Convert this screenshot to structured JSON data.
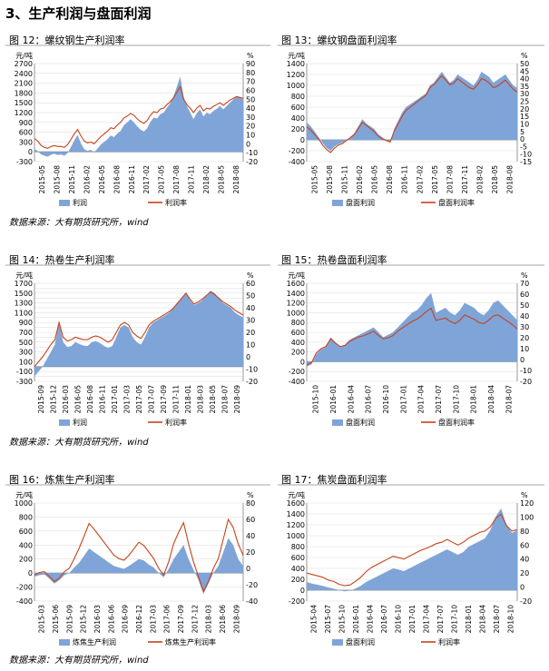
{
  "section_title": "3、生产利润与盘面利润",
  "source_text": "数据来源：大有期货研究所，wind",
  "colors": {
    "bar": "#7fa4d8",
    "line": "#c8421a",
    "axis": "#808080",
    "grid": "#d9d9d9",
    "title_rule": "#a6a6a6"
  },
  "chart_data": [
    {
      "type": "bar",
      "title": "图 12：螺纹钢生产利润率",
      "ylabel_left": "元/吨",
      "ylabel_right": "%",
      "y_left": {
        "min": -300,
        "max": 2700,
        "ticks": [
          -300,
          0,
          300,
          600,
          900,
          1200,
          1500,
          1800,
          2100,
          2400,
          2700
        ]
      },
      "y_right": {
        "min": -20,
        "max": 90,
        "ticks": [
          -20,
          -10,
          0,
          10,
          20,
          30,
          40,
          50,
          60,
          70,
          80,
          90
        ]
      },
      "x_ticks": [
        "2015-05",
        "2015-08",
        "2015-11",
        "2016-02",
        "2016-05",
        "2016-08",
        "2016-11",
        "2017-02",
        "2017-05",
        "2017-08",
        "2017-11",
        "2018-02",
        "2018-05",
        "2018-08"
      ],
      "series": [
        {
          "name": "利润",
          "type": "area",
          "values": [
            90,
            20,
            -80,
            -120,
            -150,
            -90,
            -60,
            -100,
            -80,
            -120,
            -40,
            150,
            350,
            520,
            260,
            80,
            30,
            60,
            -20,
            100,
            220,
            300,
            380,
            500,
            450,
            560,
            640,
            820,
            900,
            1000,
            900,
            780,
            680,
            620,
            720,
            920,
            1050,
            1020,
            1150,
            1200,
            1350,
            1480,
            1700,
            2000,
            2300,
            1700,
            1400,
            1200,
            1000,
            1180,
            1300,
            1080,
            1200,
            1150,
            1250,
            1320,
            1400,
            1300,
            1400,
            1500,
            1600,
            1700,
            1650,
            1600
          ]
        },
        {
          "name": "利润率",
          "type": "line",
          "axis": "right",
          "values": [
            6,
            3,
            -2,
            -4,
            -5,
            -3,
            -2,
            -3,
            -3,
            -4,
            -1,
            5,
            11,
            16,
            9,
            3,
            1,
            2,
            0,
            4,
            8,
            11,
            14,
            18,
            17,
            21,
            24,
            29,
            31,
            34,
            32,
            28,
            25,
            23,
            26,
            32,
            36,
            35,
            39,
            40,
            44,
            47,
            52,
            58,
            64,
            50,
            44,
            40,
            35,
            40,
            43,
            37,
            40,
            39,
            42,
            44,
            46,
            43,
            46,
            49,
            51,
            53,
            52,
            51
          ]
        }
      ],
      "legend": [
        "利润",
        "利润率"
      ]
    },
    {
      "type": "bar",
      "title": "图 13：螺纹钢盘面利润率",
      "ylabel_left": "元/吨",
      "ylabel_right": "%",
      "y_left": {
        "min": -400,
        "max": 1400,
        "ticks": [
          -400,
          -200,
          0,
          200,
          400,
          600,
          800,
          1000,
          1200,
          1400
        ]
      },
      "y_right": {
        "min": -15,
        "max": 50,
        "ticks": [
          -15,
          -10,
          -5,
          0,
          5,
          10,
          15,
          20,
          25,
          30,
          35,
          40,
          45,
          50
        ]
      },
      "x_ticks": [
        "2015-05",
        "2015-08",
        "2015-11",
        "2016-02",
        "2016-05",
        "2016-08",
        "2016-11",
        "2017-02",
        "2017-05",
        "2017-08",
        "2017-11",
        "2018-02",
        "2018-05",
        "2018-08"
      ],
      "series": [
        {
          "name": "盘面利润",
          "type": "area",
          "values": [
            320,
            250,
            150,
            50,
            -60,
            -150,
            -200,
            -120,
            -80,
            -50,
            0,
            50,
            120,
            250,
            380,
            300,
            250,
            200,
            100,
            50,
            0,
            -50,
            200,
            350,
            500,
            600,
            650,
            700,
            750,
            800,
            850,
            1000,
            1050,
            1150,
            1250,
            1150,
            1050,
            1100,
            1200,
            1150,
            1100,
            1050,
            1000,
            1100,
            1250,
            1200,
            1150,
            1050,
            1100,
            1150,
            1200,
            1100,
            1000,
            950
          ]
        },
        {
          "name": "盘面利润率",
          "type": "line",
          "axis": "right",
          "values": [
            8,
            6,
            3,
            0,
            -4,
            -7,
            -9,
            -6,
            -4,
            -3,
            -1,
            1,
            3,
            7,
            11,
            9,
            7,
            5,
            2,
            0,
            -1,
            -2,
            5,
            10,
            15,
            19,
            21,
            23,
            25,
            27,
            29,
            34,
            36,
            39,
            42,
            39,
            36,
            37,
            40,
            38,
            36,
            34,
            33,
            36,
            40,
            39,
            37,
            34,
            35,
            37,
            39,
            36,
            33,
            31
          ]
        }
      ],
      "legend": [
        "盘面利润",
        "盘面利润率"
      ]
    },
    {
      "type": "bar",
      "title": "图 14：热卷生产利润率",
      "ylabel_left": "元/吨",
      "ylabel_right": "%",
      "y_left": {
        "min": -300,
        "max": 1700,
        "ticks": [
          -300,
          -200,
          -100,
          0,
          100,
          200,
          300,
          400,
          500,
          600,
          700,
          800,
          900,
          1000,
          1100,
          1200,
          1300,
          1400,
          1500,
          1600,
          1700
        ]
      },
      "y_left_labels": [
        -300,
        -100,
        100,
        300,
        500,
        700,
        900,
        1100,
        1300,
        1500,
        1700
      ],
      "y_right": {
        "min": -20,
        "max": 60,
        "ticks": [
          -20,
          -10,
          0,
          10,
          20,
          30,
          40,
          50,
          60
        ]
      },
      "x_ticks": [
        "2015-09",
        "2015-12",
        "2016-03",
        "2016-05",
        "2016-08",
        "2016-11",
        "2017-01",
        "2017-03",
        "2017-05",
        "2017-07",
        "2017-09",
        "2017-11",
        "2018-01",
        "2018-03",
        "2018-05",
        "2018-07",
        "2018-09"
      ],
      "series": [
        {
          "name": "利润",
          "type": "area",
          "values": [
            -200,
            -100,
            0,
            150,
            300,
            450,
            900,
            500,
            400,
            420,
            500,
            460,
            430,
            420,
            500,
            520,
            480,
            420,
            380,
            420,
            600,
            800,
            850,
            800,
            600,
            500,
            450,
            600,
            800,
            900,
            950,
            1000,
            1050,
            1100,
            1200,
            1300,
            1400,
            1500,
            1350,
            1250,
            1300,
            1350,
            1450,
            1550,
            1500,
            1400,
            1300,
            1250,
            1200,
            1100,
            1050,
            1000
          ]
        },
        {
          "name": "利润率",
          "type": "line",
          "axis": "right",
          "values": [
            -8,
            -4,
            0,
            5,
            10,
            14,
            28,
            16,
            13,
            14,
            16,
            15,
            14,
            14,
            16,
            17,
            16,
            14,
            12,
            14,
            20,
            26,
            28,
            26,
            20,
            17,
            15,
            20,
            26,
            29,
            31,
            33,
            35,
            37,
            40,
            44,
            48,
            52,
            47,
            43,
            45,
            47,
            50,
            53,
            51,
            48,
            45,
            43,
            41,
            38,
            36,
            34
          ]
        }
      ],
      "legend": [
        "利润",
        "利润率"
      ]
    },
    {
      "type": "bar",
      "title": "图 15：热卷盘面利润率",
      "ylabel_left": "元/吨",
      "ylabel_right": "%",
      "y_left": {
        "min": -400,
        "max": 1600,
        "ticks": [
          -400,
          -200,
          0,
          200,
          400,
          600,
          800,
          1000,
          1200,
          1400,
          1600
        ]
      },
      "y_right": {
        "min": -20,
        "max": 70,
        "ticks": [
          -20,
          -10,
          0,
          10,
          20,
          30,
          40,
          50,
          60,
          70
        ]
      },
      "x_ticks": [
        "2015-10",
        "2016-01",
        "2016-04",
        "2016-07",
        "2016-10",
        "2017-01",
        "2017-04",
        "2017-07",
        "2017-10",
        "2018-01",
        "2018-04",
        "2018-07"
      ],
      "series": [
        {
          "name": "盘面利润",
          "type": "area",
          "values": [
            -100,
            -50,
            150,
            250,
            300,
            500,
            400,
            300,
            350,
            450,
            500,
            550,
            600,
            650,
            700,
            600,
            500,
            550,
            600,
            700,
            800,
            900,
            1000,
            1050,
            1150,
            1300,
            1400,
            1000,
            1050,
            1100,
            1000,
            950,
            1050,
            1200,
            1150,
            1100,
            1000,
            950,
            1050,
            1200,
            1250,
            1150,
            1050,
            950,
            850
          ]
        },
        {
          "name": "盘面利润率",
          "type": "line",
          "axis": "right",
          "values": [
            -5,
            -3,
            6,
            10,
            12,
            19,
            15,
            12,
            13,
            17,
            19,
            21,
            22,
            24,
            26,
            22,
            19,
            20,
            22,
            26,
            29,
            32,
            35,
            37,
            40,
            44,
            47,
            36,
            37,
            38,
            35,
            33,
            36,
            41,
            39,
            37,
            34,
            33,
            36,
            40,
            41,
            38,
            35,
            32,
            28
          ]
        }
      ],
      "legend": [
        "盘面利润",
        "盘面利润率"
      ]
    },
    {
      "type": "bar",
      "title": "图 16：炼焦生产利润率",
      "ylabel_left": "元/吨",
      "ylabel_right": "%",
      "y_left": {
        "min": -400,
        "max": 1000,
        "ticks": [
          -400,
          -200,
          0,
          200,
          400,
          600,
          800,
          1000
        ]
      },
      "y_right": {
        "min": -40,
        "max": 80,
        "ticks": [
          -40,
          -20,
          0,
          20,
          40,
          60,
          80
        ]
      },
      "x_ticks": [
        "2015-03",
        "2015-06",
        "2015-09",
        "2015-12",
        "2016-03",
        "2016-06",
        "2016-09",
        "2016-12",
        "2017-03",
        "2017-06",
        "2017-09",
        "2017-12",
        "2018-03",
        "2018-06",
        "2018-09"
      ],
      "series": [
        {
          "name": "炼焦生产利润",
          "type": "area",
          "values": [
            -50,
            -30,
            -20,
            -80,
            -150,
            -100,
            -30,
            0,
            80,
            150,
            250,
            350,
            300,
            250,
            200,
            150,
            100,
            80,
            60,
            100,
            150,
            200,
            180,
            120,
            80,
            0,
            -60,
            60,
            200,
            300,
            400,
            200,
            50,
            -100,
            -300,
            -150,
            0,
            100,
            300,
            500,
            400,
            200,
            100
          ]
        },
        {
          "name": "炼焦生产利润率",
          "type": "line",
          "axis": "right",
          "values": [
            -8,
            -5,
            -4,
            -10,
            -16,
            -12,
            -4,
            0,
            12,
            25,
            40,
            55,
            48,
            40,
            32,
            24,
            16,
            12,
            10,
            16,
            24,
            32,
            28,
            20,
            12,
            0,
            -8,
            8,
            30,
            44,
            56,
            30,
            8,
            -10,
            -28,
            -16,
            0,
            12,
            36,
            60,
            50,
            30,
            16
          ]
        }
      ],
      "legend": [
        "炼焦生产利润",
        "炼焦生产利润率"
      ]
    },
    {
      "type": "bar",
      "title": "图 17：焦炭盘面利润率",
      "ylabel_left": "元/吨",
      "ylabel_right": "%",
      "y_left": {
        "min": -200,
        "max": 1600,
        "ticks": [
          -200,
          0,
          200,
          400,
          600,
          800,
          1000,
          1200,
          1400,
          1600
        ]
      },
      "y_right": {
        "min": -20,
        "max": 120,
        "ticks": [
          -20,
          0,
          20,
          40,
          60,
          80,
          100,
          120
        ]
      },
      "x_ticks": [
        "2015-04",
        "2015-07",
        "2015-10",
        "2016-01",
        "2016-04",
        "2016-07",
        "2016-10",
        "2017-01",
        "2017-04",
        "2017-07",
        "2017-10",
        "2018-01",
        "2018-04",
        "2018-07",
        "2018-10"
      ],
      "series": [
        {
          "name": "盘面利润",
          "type": "area",
          "values": [
            150,
            120,
            100,
            80,
            50,
            30,
            0,
            -20,
            -10,
            30,
            80,
            150,
            200,
            250,
            300,
            350,
            400,
            380,
            350,
            400,
            450,
            500,
            550,
            600,
            650,
            700,
            750,
            700,
            650,
            700,
            800,
            850,
            900,
            950,
            1100,
            1350,
            1500,
            1200,
            1050,
            1100
          ]
        },
        {
          "name": "利润率",
          "type": "line",
          "axis": "right",
          "values": [
            20,
            18,
            16,
            14,
            10,
            8,
            4,
            2,
            3,
            8,
            14,
            22,
            28,
            32,
            36,
            40,
            44,
            42,
            40,
            44,
            48,
            52,
            55,
            58,
            62,
            64,
            68,
            64,
            60,
            64,
            70,
            74,
            78,
            80,
            86,
            98,
            104,
            88,
            80,
            82
          ]
        }
      ],
      "legend": [
        "盘面利润",
        "利润率"
      ]
    }
  ]
}
